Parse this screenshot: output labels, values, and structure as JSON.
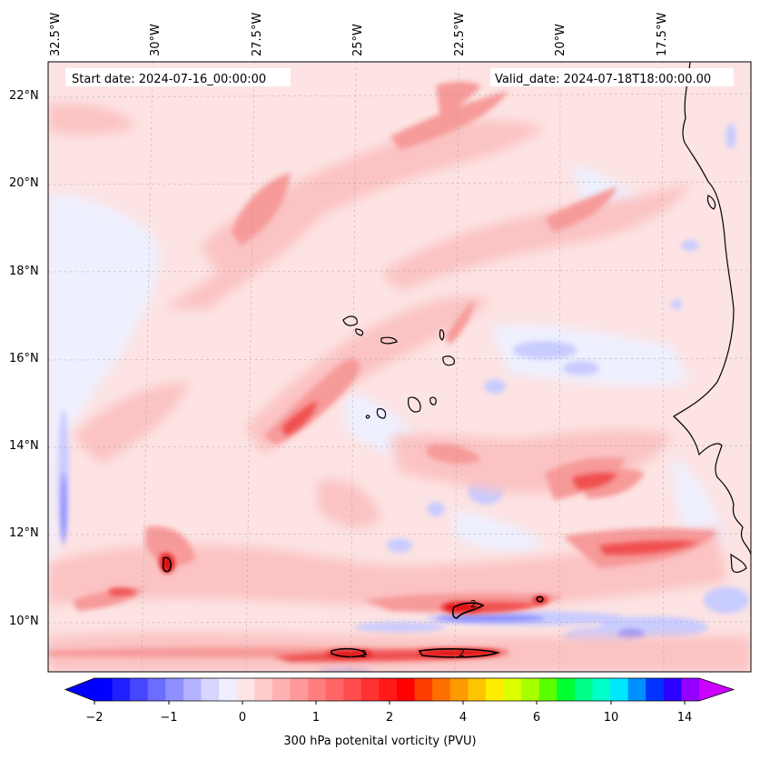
{
  "map": {
    "start_date_text": "Start date: 2024-07-16_00:00:00",
    "valid_date_text": "Valid_date: 2024-07-18T18:00:00.00",
    "longitude_labels": [
      "32.5°W",
      "30°W",
      "27.5°W",
      "25°W",
      "22.5°W",
      "20°W",
      "17.5°W"
    ],
    "latitude_labels": [
      "22°N",
      "20°N",
      "18°N",
      "16°N",
      "14°N",
      "12°N",
      "10°N"
    ],
    "contour_label": "2",
    "field_colors": {
      "pale_pink": "#fde3e3",
      "pink": "#fbc3c3",
      "salmon": "#f79a9a",
      "red": "#f0504f",
      "deep_red": "#e01010",
      "pale_blue": "#eef0ff",
      "light_blue": "#c9ccff",
      "blue": "#8c8cff",
      "deep_blue": "#3b3bff"
    }
  },
  "colorbar": {
    "label": "300 hPa potenital vorticity (PVU)",
    "tick_labels": [
      "−2",
      "−1",
      "0",
      "1",
      "2",
      "4",
      "6",
      "10",
      "14"
    ],
    "colors": [
      "#0000ff",
      "#2020ff",
      "#4646ff",
      "#6c6cff",
      "#8f8fff",
      "#b3b3ff",
      "#d6d6ff",
      "#efefff",
      "#ffe5e5",
      "#ffcccc",
      "#ffb2b2",
      "#ff9999",
      "#ff7f7f",
      "#ff6666",
      "#ff4c4c",
      "#ff3232",
      "#ff1919",
      "#ff0000",
      "#ff3d00",
      "#ff6f00",
      "#ff9a00",
      "#ffc400",
      "#ffee00",
      "#dcff00",
      "#a8ff00",
      "#5cff00",
      "#00ff33",
      "#00ff88",
      "#00ffc9",
      "#00e8ff",
      "#0090ff",
      "#0033ff",
      "#2a00ff",
      "#9400ff"
    ]
  }
}
